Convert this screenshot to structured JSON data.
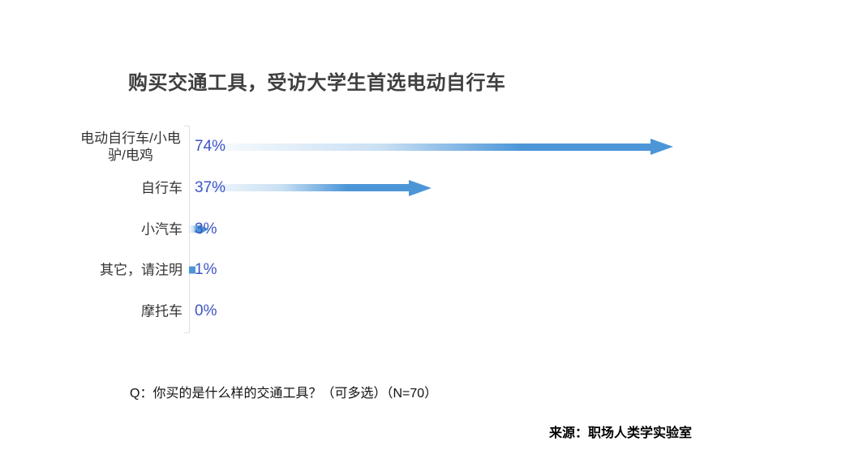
{
  "title": "购买交通工具，受访大学生首选电动自行车",
  "chart_data": {
    "type": "bar",
    "orientation": "horizontal",
    "title": "购买交通工具，受访大学生首选电动自行车",
    "categories": [
      "电动自行车/小电驴/电鸡",
      "自行车",
      "小汽车",
      "其它，请注明",
      "摩托车"
    ],
    "values": [
      74,
      37,
      3,
      1,
      0
    ],
    "value_labels": [
      "74%",
      "37%",
      "3%",
      "1%",
      "0%"
    ],
    "xlabel": "",
    "ylabel": "",
    "xlim": [
      0,
      74
    ],
    "grid": false,
    "legend_position": "none",
    "bar_color": "#4C96D8",
    "bar_style": "gradient-arrow",
    "value_label_color": "#3D55C5",
    "axis_color": "#E0E0E0"
  },
  "footnote": "Q：你买的是什么样的交通工具？（可多选）（N=70）",
  "source": "来源：职场人类学实验室"
}
